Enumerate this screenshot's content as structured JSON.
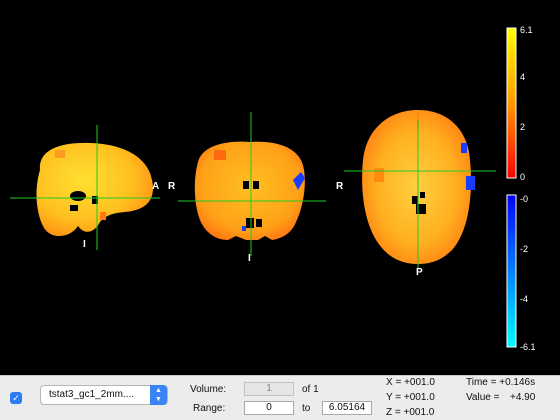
{
  "orientation_labels": {
    "sagittal_right": "A",
    "sagittal_bottom": "I",
    "coronal_left": "R",
    "coronal_bottom": "I",
    "axial_left": "R",
    "axial_bottom": "P"
  },
  "colorbar": {
    "positive": {
      "max_label": "6.1",
      "ticks": [
        "4",
        "2"
      ],
      "min_label": "0",
      "colors": [
        "#ffff00",
        "#ff0000"
      ]
    },
    "negative": {
      "max_label": "-0",
      "ticks": [
        "-2",
        "-4"
      ],
      "min_label": "-6.1",
      "colors": [
        "#0000ff",
        "#00ffff"
      ]
    }
  },
  "colors": {
    "crosshair": "#22cc22",
    "overlay_hot": "#ffb020",
    "overlay_cold": "#1a3cff"
  },
  "controls": {
    "overlay_enabled": true,
    "overlay_select_value": "tstat3_gc1_2mm....",
    "volume_label": "Volume:",
    "volume_value": "1",
    "volume_of": "of 1",
    "range_label": "Range:",
    "range_min": "0",
    "range_to": "to",
    "range_max": "6.05164",
    "x_coord": "X = +001.0",
    "y_coord": "Y = +001.0",
    "z_coord": "Z = +001.0",
    "time_label": "Time = +0.146s",
    "value_label": "Value =",
    "value_number": "+4.90"
  }
}
